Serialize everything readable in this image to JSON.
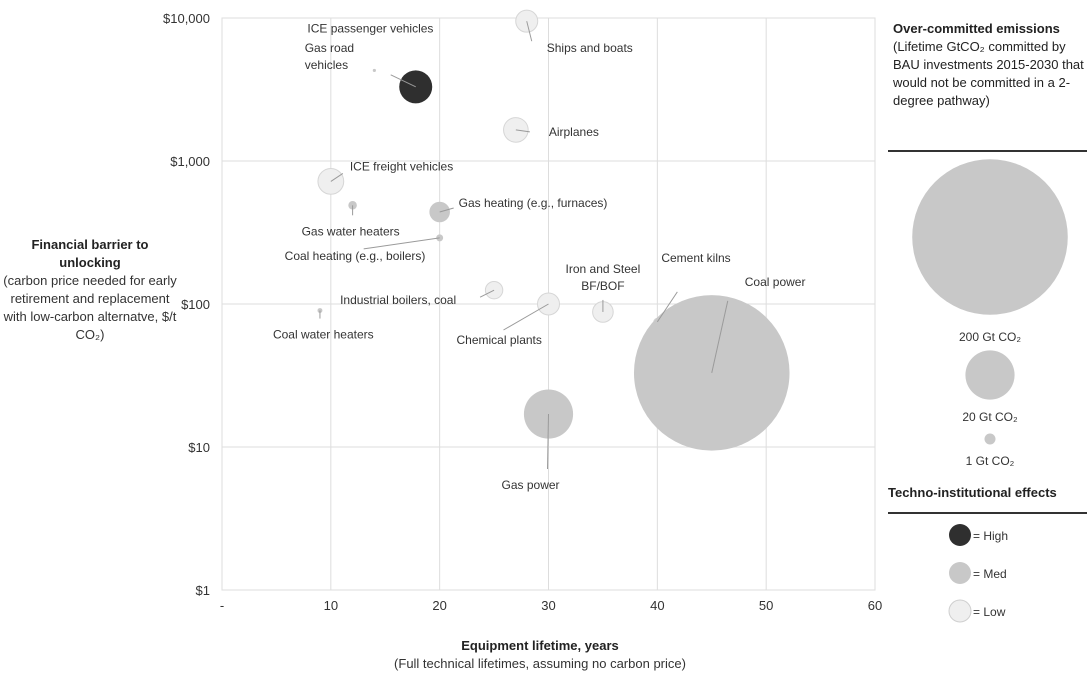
{
  "chart_data": {
    "type": "scatter",
    "subtype": "bubble",
    "xlabel": "Equipment lifetime, years",
    "xlabel_sub": "(Full technical lifetimes, assuming no carbon price)",
    "ylabel": "Financial barrier to unlocking",
    "ylabel_sub": "(carbon price needed for early retirement and replacement with low-carbon alternatve, $/t CO₂)",
    "x_ticks": [
      "-",
      "10",
      "20",
      "30",
      "40",
      "50",
      "60"
    ],
    "xlim": [
      0,
      60
    ],
    "y_ticks": [
      "$1",
      "$10",
      "$100",
      "$1,000",
      "$10,000"
    ],
    "ylim": [
      1,
      10000
    ],
    "yscale": "log",
    "grid": true,
    "points": [
      {
        "label": "Ships and boats",
        "x": 28,
        "y": 9500,
        "size": 4,
        "effect": "Low"
      },
      {
        "label": "ICE passenger vehicles",
        "x": 14,
        "y": 4300,
        "size": 0.05,
        "effect": "Med"
      },
      {
        "label": "Gas road vehicles",
        "x": 17.8,
        "y": 3300,
        "size": 9,
        "effect": "High"
      },
      {
        "label": "Airplanes",
        "x": 27,
        "y": 1650,
        "size": 5,
        "effect": "Low"
      },
      {
        "label": "ICE freight vehicles",
        "x": 10,
        "y": 720,
        "size": 5.5,
        "effect": "Low"
      },
      {
        "label": "Gas heating (e.g., furnaces)",
        "x": 20,
        "y": 440,
        "size": 3.5,
        "effect": "Med"
      },
      {
        "label": "Gas water heaters",
        "x": 12,
        "y": 490,
        "size": 0.6,
        "effect": "Med"
      },
      {
        "label": "Coal heating (e.g., boilers)",
        "x": 20,
        "y": 290,
        "size": 0.4,
        "effect": "Med"
      },
      {
        "label": "Industrial boilers, coal",
        "x": 25,
        "y": 125,
        "size": 2.5,
        "effect": "Low"
      },
      {
        "label": "Chemical plants",
        "x": 30,
        "y": 100,
        "size": 4,
        "effect": "Low"
      },
      {
        "label": "Iron and Steel BF/BOF",
        "x": 35,
        "y": 88,
        "size": 3.5,
        "effect": "Low"
      },
      {
        "label": "Cement kilns",
        "x": 40,
        "y": 75,
        "size": 0.4,
        "effect": "Low"
      },
      {
        "label": "Coal water heaters",
        "x": 9,
        "y": 90,
        "size": 0.2,
        "effect": "Med"
      },
      {
        "label": "Coal power",
        "x": 45,
        "y": 33,
        "size": 200,
        "effect": "Med"
      },
      {
        "label": "Gas power",
        "x": 30,
        "y": 17,
        "size": 20,
        "effect": "Med"
      }
    ],
    "legend": {
      "size_title": "Over-committed emissions",
      "size_subtitle": "(Lifetime GtCO₂ committed by BAU investments 2015-2030 that would not be committed in a 2-degree pathway)",
      "sizes": [
        {
          "label": "200 Gt CO₂",
          "value": 200
        },
        {
          "label": "20 Gt CO₂",
          "value": 20
        },
        {
          "label": "1 Gt CO₂",
          "value": 1
        }
      ],
      "effects_title": "Techno-institutional effects",
      "effects": [
        {
          "label": "= High",
          "key": "High"
        },
        {
          "label": "= Med",
          "key": "Med"
        },
        {
          "label": "= Low",
          "key": "Low"
        }
      ]
    },
    "colors": {
      "High": "#2f2f2f",
      "Med": "#c8c8c8",
      "Low": "#efefef",
      "grid": "#dddddd",
      "leader": "#9a9a9a"
    }
  }
}
